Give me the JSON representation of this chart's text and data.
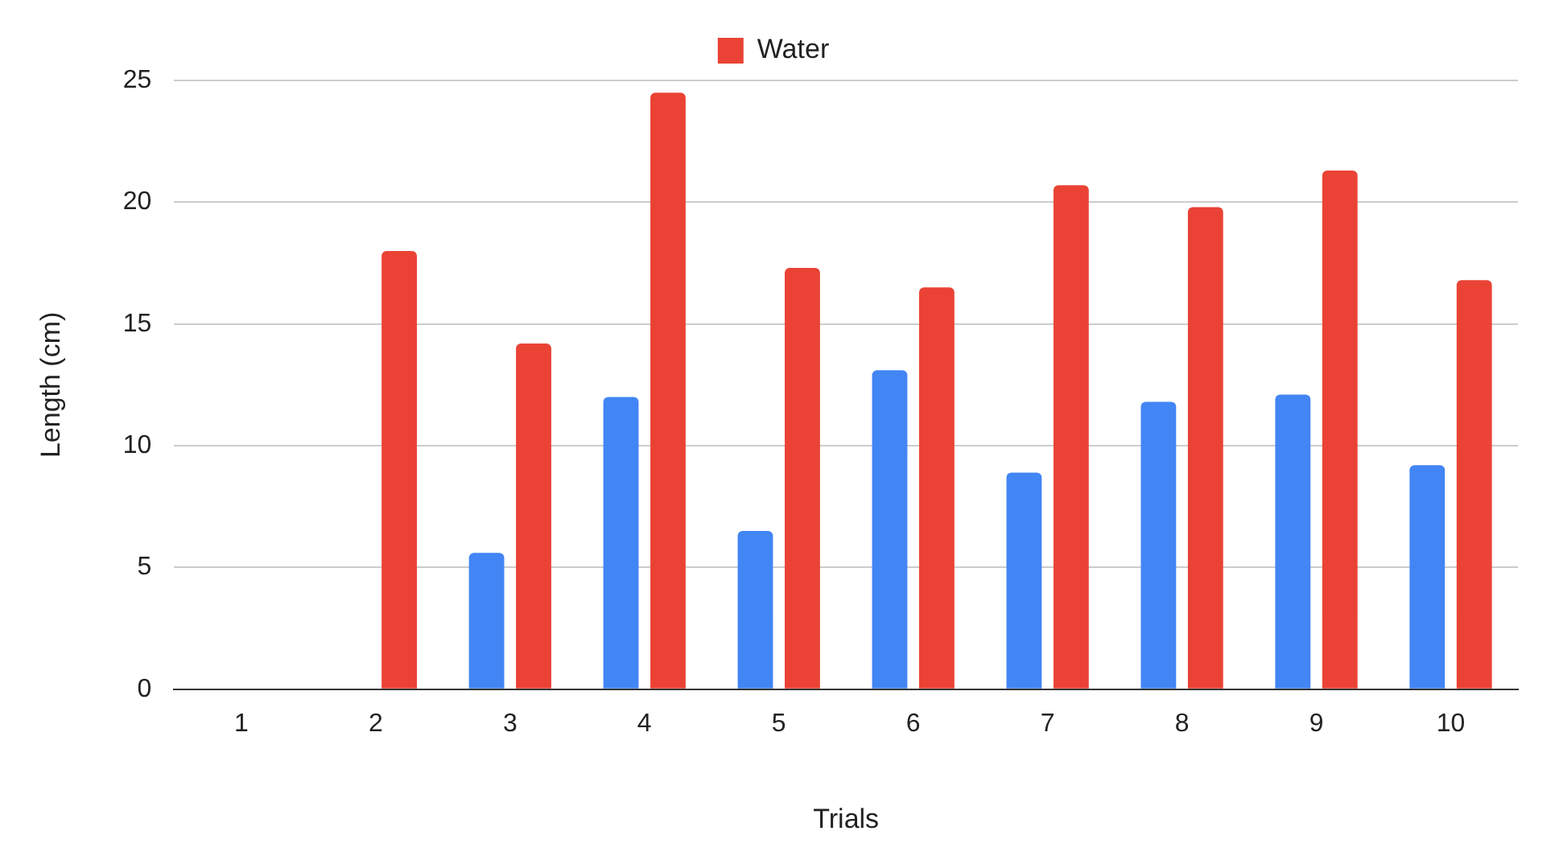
{
  "chart_data": {
    "type": "bar",
    "xlabel": "Trials",
    "ylabel": "Length (cm)",
    "categories": [
      "1",
      "2",
      "3",
      "4",
      "5",
      "6",
      "7",
      "8",
      "9",
      "10"
    ],
    "series": [
      {
        "color": "#4285f4",
        "values": [
          0,
          0,
          5.6,
          12,
          6.5,
          13.1,
          8.9,
          11.8,
          12.1,
          9.2
        ]
      },
      {
        "name": "Water",
        "color": "#ea4335",
        "values": [
          0,
          18,
          14.2,
          24.5,
          17.3,
          16.5,
          20.7,
          19.8,
          21.3,
          16.8
        ]
      }
    ],
    "ylim": [
      0,
      25
    ],
    "yticks": [
      0,
      5,
      10,
      15,
      20,
      25
    ],
    "grid": "y",
    "legend": "top"
  }
}
